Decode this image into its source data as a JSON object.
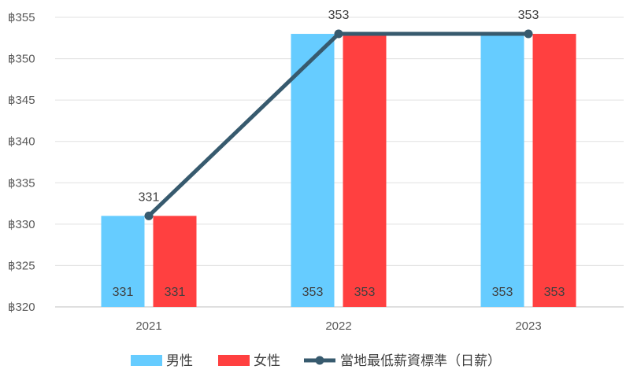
{
  "chart_data": {
    "type": "bar",
    "categories": [
      "2021",
      "2022",
      "2023"
    ],
    "series": [
      {
        "name": "男性",
        "type": "bar",
        "color": "#66CCFF",
        "values": [
          331,
          353,
          353
        ]
      },
      {
        "name": "女性",
        "type": "bar",
        "color": "#FF4040",
        "values": [
          331,
          353,
          353
        ]
      },
      {
        "name": "當地最低薪資標準（日薪）",
        "type": "line",
        "color": "#375A6E",
        "values": [
          331,
          353,
          353
        ]
      }
    ],
    "y_ticks": [
      "฿320",
      "฿325",
      "฿330",
      "฿335",
      "฿340",
      "฿345",
      "฿350",
      "฿355"
    ],
    "ylim": [
      320,
      355
    ],
    "grid": true,
    "legend_position": "bottom"
  }
}
